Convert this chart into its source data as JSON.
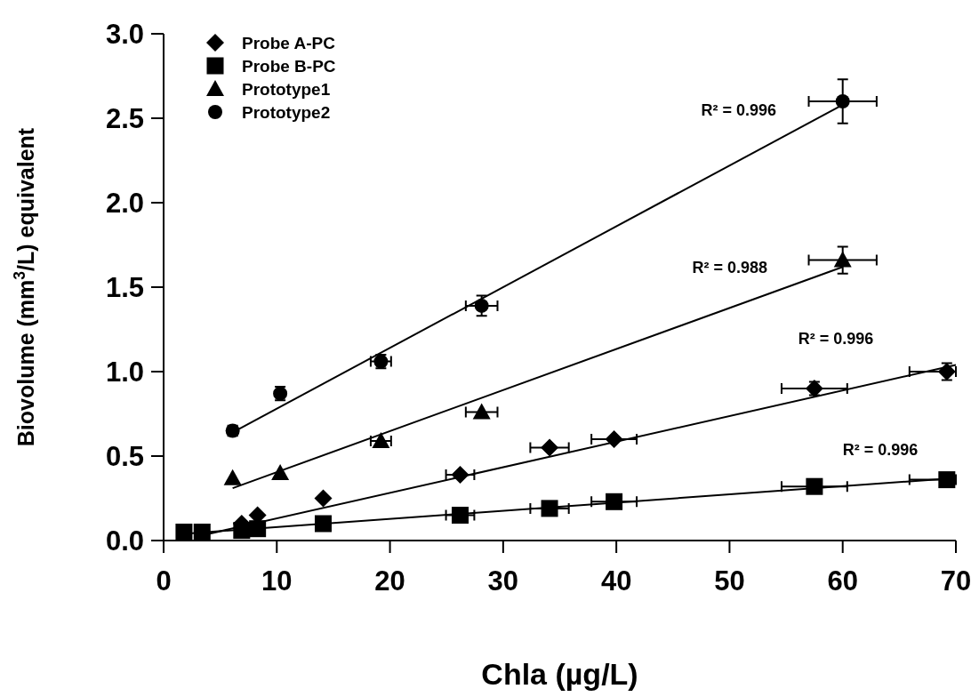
{
  "chart_data": {
    "type": "scatter",
    "xlabel": "Chla (µg/L)",
    "ylabel": "Biovolume (mm$^{3}$/L) equivalent",
    "xlim": [
      0,
      70
    ],
    "xticks": [
      0,
      10,
      20,
      30,
      40,
      50,
      60,
      70
    ],
    "ylim": [
      0,
      3
    ],
    "yticks": [
      {
        "value": 0,
        "label": "0.0"
      },
      {
        "value": 0.5,
        "label": "0.5"
      },
      {
        "value": 1,
        "label": "1.0"
      },
      {
        "value": 1.5,
        "label": "1.5"
      },
      {
        "value": 2,
        "label": "2.0"
      },
      {
        "value": 2.5,
        "label": "2.5"
      },
      {
        "value": 3,
        "label": "3.0"
      }
    ],
    "grid": false,
    "legend": "top left",
    "series": [
      {
        "name": "Probe A-PC",
        "color": "#000000",
        "marker": "diamond",
        "x": [
          6.9,
          8.3,
          14.1,
          26.2,
          34.1,
          39.8,
          57.5,
          69.2
        ],
        "values": [
          0.1,
          0.15,
          0.25,
          0.39,
          0.55,
          0.6,
          0.9,
          1.0
        ],
        "errors": [
          null,
          null,
          null,
          null,
          null,
          null,
          0.04,
          0.05
        ],
        "xerrors": [
          null,
          null,
          null,
          1.25,
          1.7,
          2,
          2.9,
          [
            65.9,
            70
          ]
        ]
      },
      {
        "name": "Probe B-PC",
        "color": "#000000",
        "marker": "square",
        "x": [
          1.8,
          3.4,
          6.9,
          8.3,
          14.1,
          26.2,
          34.1,
          39.8,
          57.5,
          69.2
        ],
        "values": [
          0.05,
          0.05,
          0.06,
          0.07,
          0.1,
          0.15,
          0.19,
          0.23,
          0.32,
          0.36
        ],
        "xerrors": [
          null,
          null,
          null,
          null,
          null,
          1.25,
          1.7,
          2,
          2.9,
          [
            65.9,
            70
          ]
        ]
      },
      {
        "name": "Prototype1",
        "color": "#000000",
        "marker": "triangle",
        "x": [
          6.1,
          10.3,
          19.2,
          28.1,
          60
        ],
        "values": [
          0.37,
          0.4,
          0.59,
          0.76,
          1.66
        ],
        "errors": [
          null,
          null,
          null,
          null,
          0.08
        ],
        "xerrors": [
          null,
          null,
          0.9,
          1.4,
          3
        ]
      },
      {
        "name": "Prototype2",
        "color": "#000000",
        "marker": "circle",
        "x": [
          6.1,
          10.3,
          19.2,
          28.1,
          60
        ],
        "values": [
          0.65,
          0.87,
          1.06,
          1.39,
          2.6
        ],
        "errors": [
          0.03,
          0.04,
          0.04,
          0.06,
          0.13
        ],
        "xerrors": [
          null,
          null,
          0.9,
          1.4,
          3
        ]
      },
      {
        "type": "line",
        "color": "#000000",
        "x": [
          4,
          70
        ],
        "values": [
          0.04,
          1.04
        ]
      },
      {
        "type": "line",
        "color": "#000000",
        "x": [
          1.8,
          70
        ],
        "values": [
          0.04,
          0.37
        ]
      },
      {
        "type": "line",
        "color": "#000000",
        "x": [
          6.1,
          60
        ],
        "values": [
          0.31,
          1.62
        ]
      },
      {
        "type": "line",
        "color": "#000000",
        "x": [
          6.1,
          60
        ],
        "values": [
          0.64,
          2.58
        ]
      }
    ],
    "annotations": [
      "R² = 0.996",
      "R² = 0.996",
      "R² = 0.988",
      "R² = 0.996"
    ]
  }
}
